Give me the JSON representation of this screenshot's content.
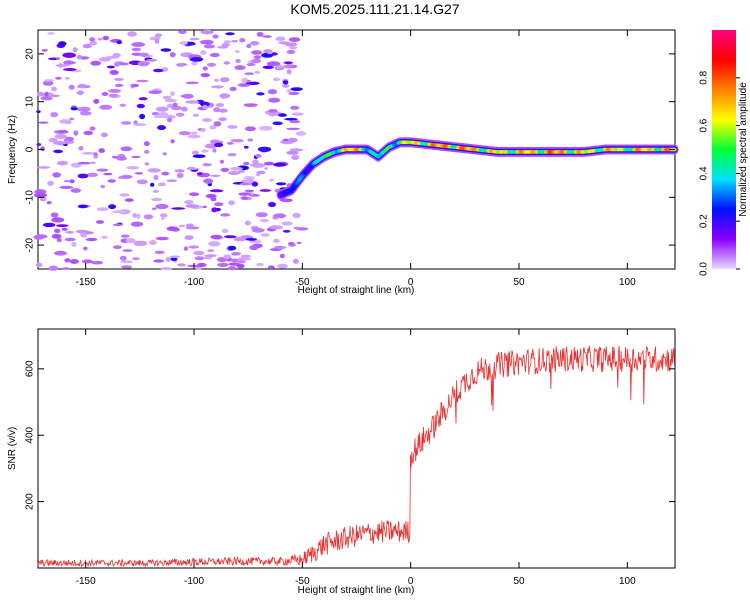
{
  "title": "KOM5.2025.111.21.14.G27",
  "chart_data": [
    {
      "type": "heatmap",
      "title": "KOM5.2025.111.21.14.G27",
      "xlabel": "Height of straight line (km)",
      "ylabel": "Frequency (Hz)",
      "xlim": [
        -172,
        122
      ],
      "ylim": [
        -25,
        25
      ],
      "xticks": [
        -150,
        -100,
        -50,
        0,
        50,
        100
      ],
      "yticks": [
        -20,
        -10,
        0,
        10,
        20
      ],
      "colorbar": {
        "label": "Normalized spectral amplitude",
        "range": [
          0,
          1
        ],
        "ticks": [
          0.0,
          0.2,
          0.4,
          0.6,
          0.8
        ],
        "colormap": [
          "#e8d8ff",
          "#8a00ff",
          "#0010ff",
          "#00e0ff",
          "#00ff30",
          "#ffff00",
          "#ff8000",
          "#ff0000",
          "#ff0080"
        ]
      },
      "noise_region_x": [
        -172,
        -50
      ],
      "ridge": {
        "x": [
          -60,
          -55,
          -50,
          -45,
          -40,
          -35,
          -30,
          -25,
          -20,
          -15,
          -10,
          -5,
          0,
          10,
          20,
          30,
          40,
          50,
          60,
          70,
          80,
          90,
          100,
          110,
          122
        ],
        "freq": [
          -9.5,
          -8.5,
          -5.5,
          -3,
          -1.5,
          -0.5,
          0,
          0,
          0,
          -1.5,
          0.5,
          1.5,
          1.5,
          1,
          0.5,
          0,
          -0.5,
          -0.5,
          -0.5,
          -0.5,
          -0.5,
          0,
          0,
          0,
          0
        ],
        "amp": [
          0.25,
          0.3,
          0.35,
          0.4,
          0.5,
          0.6,
          0.75,
          0.8,
          0.6,
          0.4,
          0.55,
          0.6,
          0.7,
          0.8,
          0.85,
          0.8,
          0.7,
          0.75,
          0.8,
          0.85,
          0.7,
          0.75,
          0.7,
          0.8,
          0.75
        ]
      }
    },
    {
      "type": "line",
      "xlabel": "Height of straight line (km)",
      "ylabel": "SNR (v/v)",
      "xlim": [
        -172,
        122
      ],
      "ylim": [
        0,
        720
      ],
      "xticks": [
        -150,
        -100,
        -50,
        0,
        50,
        100
      ],
      "yticks": [
        200,
        400,
        600
      ],
      "color": "#e83030",
      "x": [
        -172,
        -150,
        -120,
        -100,
        -80,
        -60,
        -50,
        -45,
        -40,
        -30,
        -20,
        -10,
        -1,
        0,
        5,
        10,
        15,
        20,
        25,
        30,
        40,
        50,
        60,
        70,
        80,
        90,
        100,
        110,
        122
      ],
      "snr": [
        15,
        15,
        15,
        18,
        20,
        20,
        25,
        45,
        70,
        90,
        105,
        110,
        110,
        340,
        380,
        420,
        470,
        520,
        560,
        590,
        610,
        620,
        625,
        630,
        630,
        630,
        630,
        630,
        630
      ],
      "noise_amplitude": [
        10,
        10,
        10,
        12,
        12,
        12,
        20,
        30,
        35,
        35,
        35,
        35,
        35,
        40,
        40,
        40,
        40,
        40,
        40,
        40,
        40,
        40,
        40,
        40,
        40,
        40,
        40,
        40,
        40
      ]
    }
  ]
}
